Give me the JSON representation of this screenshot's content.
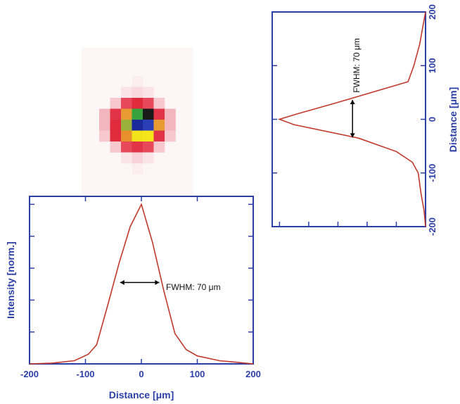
{
  "colors": {
    "axis": "#2b3fa6",
    "line": "#c0392b",
    "arrow": "#000000"
  },
  "beam_spot": {
    "pixels": [
      {
        "col": 3,
        "row": 0,
        "color": "#fbeef0"
      },
      {
        "col": 2,
        "row": 1,
        "color": "#fbe4e8"
      },
      {
        "col": 3,
        "row": 1,
        "color": "#f9d9de"
      },
      {
        "col": 4,
        "row": 1,
        "color": "#fbe4e8"
      },
      {
        "col": 1,
        "row": 2,
        "color": "#f7c9cf"
      },
      {
        "col": 2,
        "row": 2,
        "color": "#e8495a"
      },
      {
        "col": 3,
        "row": 2,
        "color": "#e02b3c"
      },
      {
        "col": 4,
        "row": 2,
        "color": "#e8495a"
      },
      {
        "col": 5,
        "row": 2,
        "color": "#f7c9cf"
      },
      {
        "col": 0,
        "row": 3,
        "color": "#f4b6bd"
      },
      {
        "col": 1,
        "row": 3,
        "color": "#e23447"
      },
      {
        "col": 2,
        "row": 3,
        "color": "#e89b32"
      },
      {
        "col": 3,
        "row": 3,
        "color": "#38a33c"
      },
      {
        "col": 4,
        "row": 3,
        "color": "#1a1a1a"
      },
      {
        "col": 5,
        "row": 3,
        "color": "#e23447"
      },
      {
        "col": 6,
        "row": 3,
        "color": "#f4b6bd"
      },
      {
        "col": 0,
        "row": 4,
        "color": "#f4b6bd"
      },
      {
        "col": 1,
        "row": 4,
        "color": "#e02b3c"
      },
      {
        "col": 2,
        "row": 4,
        "color": "#9bb23a"
      },
      {
        "col": 3,
        "row": 4,
        "color": "#1b2a9a"
      },
      {
        "col": 4,
        "row": 4,
        "color": "#2a3fb5"
      },
      {
        "col": 5,
        "row": 4,
        "color": "#e89b32"
      },
      {
        "col": 6,
        "row": 4,
        "color": "#f4b6bd"
      },
      {
        "col": 0,
        "row": 5,
        "color": "#f7c9cf"
      },
      {
        "col": 1,
        "row": 5,
        "color": "#e02b3c"
      },
      {
        "col": 2,
        "row": 5,
        "color": "#e8912c"
      },
      {
        "col": 3,
        "row": 5,
        "color": "#f2e21a"
      },
      {
        "col": 4,
        "row": 5,
        "color": "#f5e61c"
      },
      {
        "col": 5,
        "row": 5,
        "color": "#e23447"
      },
      {
        "col": 6,
        "row": 5,
        "color": "#f7c9cf"
      },
      {
        "col": 1,
        "row": 6,
        "color": "#f7c9cf"
      },
      {
        "col": 2,
        "row": 6,
        "color": "#e8495a"
      },
      {
        "col": 3,
        "row": 6,
        "color": "#e23447"
      },
      {
        "col": 4,
        "row": 6,
        "color": "#e8495a"
      },
      {
        "col": 5,
        "row": 6,
        "color": "#f7c9cf"
      },
      {
        "col": 2,
        "row": 7,
        "color": "#fbe4e8"
      },
      {
        "col": 3,
        "row": 7,
        "color": "#f7d3d8"
      },
      {
        "col": 4,
        "row": 7,
        "color": "#fbe4e8"
      },
      {
        "col": 3,
        "row": 8,
        "color": "#fbeef0"
      }
    ]
  },
  "chart_data": [
    {
      "type": "line",
      "orientation": "horizontal",
      "xlabel": "Distance [μm]",
      "ylabel": "Intensity  [norm.]",
      "xlim": [
        -200,
        200
      ],
      "x_ticks": [
        -200,
        -100,
        0,
        100,
        200
      ],
      "x_tick_labels": [
        "-200",
        "-100",
        "0",
        "100",
        "200"
      ],
      "ylim": [
        0,
        1.05
      ],
      "x": [
        -200,
        -160,
        -120,
        -95,
        -80,
        -60,
        -40,
        -20,
        0,
        20,
        40,
        60,
        80,
        100,
        140,
        170,
        200
      ],
      "y": [
        0.0,
        0.005,
        0.02,
        0.06,
        0.12,
        0.37,
        0.63,
        0.86,
        1.0,
        0.76,
        0.46,
        0.19,
        0.09,
        0.05,
        0.02,
        0.01,
        0.0
      ],
      "annotation": {
        "text": "FWHM: 70 μm",
        "x1": -38,
        "x2": 32,
        "y": 0.51
      }
    },
    {
      "type": "line",
      "orientation": "vertical",
      "ylabel": "Distance [μm]",
      "ylim": [
        -200,
        200
      ],
      "y_ticks": [
        200,
        100,
        0,
        -100,
        -200
      ],
      "y_tick_labels": [
        "200",
        "100",
        "0",
        "-100",
        "-200"
      ],
      "xlim": [
        0,
        1.05
      ],
      "y": [
        200,
        170,
        140,
        100,
        70,
        50,
        30,
        10,
        0,
        -10,
        -35,
        -60,
        -80,
        -100,
        -140,
        -170,
        -200
      ],
      "x": [
        0.0,
        0.02,
        0.04,
        0.08,
        0.12,
        0.37,
        0.62,
        0.88,
        1.0,
        0.9,
        0.46,
        0.2,
        0.09,
        0.05,
        0.03,
        0.01,
        0.0
      ],
      "annotation": {
        "text": "FWHM: 70 μm",
        "y1": 36,
        "y2": -34,
        "x": 0.5
      }
    }
  ]
}
